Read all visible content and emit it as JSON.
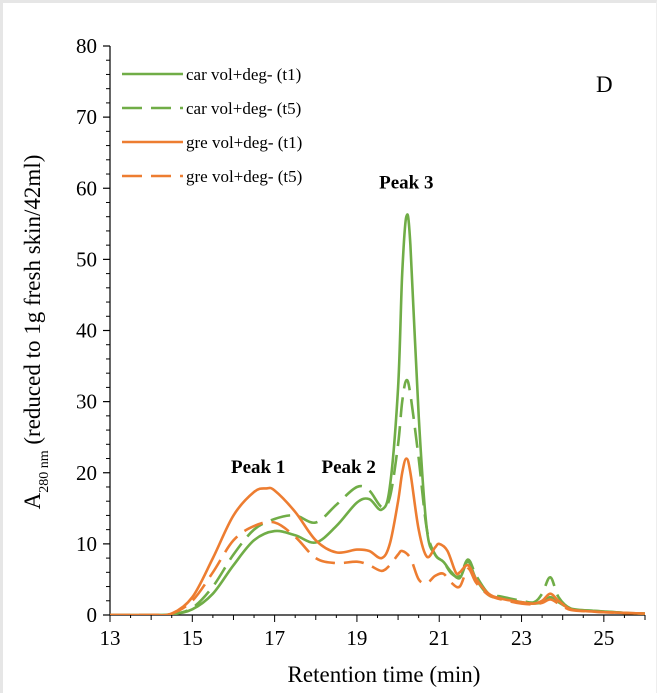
{
  "chart_data": {
    "type": "line",
    "panel_label": "D",
    "xlabel": "Retention time (min)",
    "ylabel": {
      "prefix": "A",
      "subscript": "280 nm",
      "suffix": " (reduced to 1g fresh skin/42ml)"
    },
    "xlim": [
      13,
      26
    ],
    "ylim": [
      0,
      80
    ],
    "xticks": [
      13,
      15,
      17,
      19,
      21,
      23,
      25
    ],
    "yticks": [
      0,
      10,
      20,
      30,
      40,
      50,
      60,
      70,
      80
    ],
    "legend_position": "top-left",
    "annotations": [
      {
        "text": "Peak 1",
        "x": 16.6,
        "y": 20
      },
      {
        "text": "Peak 2",
        "x": 18.8,
        "y": 20
      },
      {
        "text": "Peak 3",
        "x": 20.2,
        "y": 60
      }
    ],
    "series": [
      {
        "name": "car vol+deg- (t1)",
        "color": "#70ad47",
        "dash": "solid",
        "points": [
          [
            13,
            0
          ],
          [
            14,
            0
          ],
          [
            14.5,
            0.1
          ],
          [
            15,
            0.8
          ],
          [
            15.5,
            3
          ],
          [
            16,
            7
          ],
          [
            16.5,
            10.5
          ],
          [
            17,
            11.8
          ],
          [
            17.5,
            11.2
          ],
          [
            18,
            10.2
          ],
          [
            18.5,
            12.5
          ],
          [
            19,
            15.8
          ],
          [
            19.3,
            16.3
          ],
          [
            19.6,
            14.8
          ],
          [
            19.8,
            18
          ],
          [
            20,
            32
          ],
          [
            20.1,
            48
          ],
          [
            20.2,
            56
          ],
          [
            20.3,
            52
          ],
          [
            20.5,
            28
          ],
          [
            20.7,
            12
          ],
          [
            20.9,
            8.5
          ],
          [
            21.1,
            7.5
          ],
          [
            21.3,
            6
          ],
          [
            21.5,
            5.2
          ],
          [
            21.7,
            7.5
          ],
          [
            21.9,
            5
          ],
          [
            22.2,
            2.8
          ],
          [
            22.5,
            2.4
          ],
          [
            23,
            1.8
          ],
          [
            23.3,
            1.6
          ],
          [
            23.5,
            1.8
          ],
          [
            23.7,
            2.5
          ],
          [
            23.9,
            1.8
          ],
          [
            24.2,
            0.9
          ],
          [
            24.7,
            0.6
          ],
          [
            25,
            0.5
          ],
          [
            25.5,
            0.3
          ],
          [
            26,
            0.2
          ]
        ]
      },
      {
        "name": "car vol+deg- (t5)",
        "color": "#70ad47",
        "dash": "dashed",
        "points": [
          [
            13,
            0
          ],
          [
            14,
            0
          ],
          [
            14.5,
            0.1
          ],
          [
            15,
            1
          ],
          [
            15.5,
            4
          ],
          [
            16,
            8.5
          ],
          [
            16.5,
            12
          ],
          [
            17,
            13.5
          ],
          [
            17.5,
            14
          ],
          [
            18,
            13
          ],
          [
            18.5,
            15.5
          ],
          [
            19,
            18
          ],
          [
            19.3,
            17.5
          ],
          [
            19.6,
            15.2
          ],
          [
            19.8,
            16.5
          ],
          [
            20,
            24
          ],
          [
            20.1,
            30
          ],
          [
            20.2,
            33
          ],
          [
            20.3,
            31
          ],
          [
            20.5,
            22
          ],
          [
            20.7,
            12
          ],
          [
            20.9,
            8.5
          ],
          [
            21.1,
            7.5
          ],
          [
            21.3,
            5.8
          ],
          [
            21.5,
            5.5
          ],
          [
            21.7,
            7.8
          ],
          [
            21.9,
            5.5
          ],
          [
            22.2,
            3
          ],
          [
            22.5,
            2.6
          ],
          [
            23,
            2
          ],
          [
            23.3,
            1.8
          ],
          [
            23.5,
            3
          ],
          [
            23.7,
            5.3
          ],
          [
            23.9,
            2.5
          ],
          [
            24.2,
            0.9
          ],
          [
            24.7,
            0.6
          ],
          [
            25,
            0.5
          ],
          [
            25.5,
            0.3
          ],
          [
            26,
            0.2
          ]
        ]
      },
      {
        "name": "gre vol+deg- (t1)",
        "color": "#ed7d31",
        "dash": "solid",
        "points": [
          [
            13,
            0
          ],
          [
            14,
            0
          ],
          [
            14.5,
            0.2
          ],
          [
            15,
            2.5
          ],
          [
            15.5,
            8
          ],
          [
            16,
            14
          ],
          [
            16.5,
            17.3
          ],
          [
            16.8,
            17.8
          ],
          [
            17,
            17.5
          ],
          [
            17.5,
            14.5
          ],
          [
            18,
            10.5
          ],
          [
            18.5,
            8.8
          ],
          [
            19,
            9.2
          ],
          [
            19.3,
            9
          ],
          [
            19.6,
            8
          ],
          [
            19.8,
            10
          ],
          [
            20,
            16
          ],
          [
            20.1,
            20
          ],
          [
            20.2,
            22
          ],
          [
            20.3,
            20
          ],
          [
            20.5,
            12
          ],
          [
            20.7,
            8.2
          ],
          [
            20.9,
            9.5
          ],
          [
            21,
            10
          ],
          [
            21.2,
            9
          ],
          [
            21.4,
            6
          ],
          [
            21.5,
            6
          ],
          [
            21.7,
            7
          ],
          [
            21.9,
            5
          ],
          [
            22.2,
            3
          ],
          [
            22.5,
            2.3
          ],
          [
            23,
            1.8
          ],
          [
            23.3,
            1.6
          ],
          [
            23.5,
            2
          ],
          [
            23.7,
            3
          ],
          [
            23.9,
            2
          ],
          [
            24.2,
            0.8
          ],
          [
            24.7,
            0.5
          ],
          [
            25,
            0.4
          ],
          [
            25.5,
            0.3
          ],
          [
            26,
            0.2
          ]
        ]
      },
      {
        "name": "gre vol+deg- (t5)",
        "color": "#ed7d31",
        "dash": "dashed",
        "points": [
          [
            13,
            0
          ],
          [
            14,
            0
          ],
          [
            14.5,
            0.2
          ],
          [
            15,
            2
          ],
          [
            15.5,
            6
          ],
          [
            16,
            10.5
          ],
          [
            16.5,
            12.5
          ],
          [
            17,
            13
          ],
          [
            17.5,
            11
          ],
          [
            18,
            8
          ],
          [
            18.5,
            7.3
          ],
          [
            19,
            7.5
          ],
          [
            19.3,
            7
          ],
          [
            19.6,
            6.2
          ],
          [
            19.8,
            7
          ],
          [
            20,
            8.5
          ],
          [
            20.1,
            9
          ],
          [
            20.3,
            8
          ],
          [
            20.5,
            5
          ],
          [
            20.7,
            4.5
          ],
          [
            20.9,
            5.5
          ],
          [
            21.1,
            5.8
          ],
          [
            21.3,
            4.5
          ],
          [
            21.5,
            4
          ],
          [
            21.7,
            6.5
          ],
          [
            21.9,
            4.5
          ],
          [
            22.2,
            2.8
          ],
          [
            22.5,
            2.2
          ],
          [
            23,
            1.6
          ],
          [
            23.3,
            1.5
          ],
          [
            23.5,
            1.7
          ],
          [
            23.7,
            2.2
          ],
          [
            23.9,
            1.6
          ],
          [
            24.2,
            0.7
          ],
          [
            24.7,
            0.5
          ],
          [
            25,
            0.4
          ],
          [
            25.5,
            0.3
          ],
          [
            26,
            0.2
          ]
        ]
      }
    ]
  }
}
